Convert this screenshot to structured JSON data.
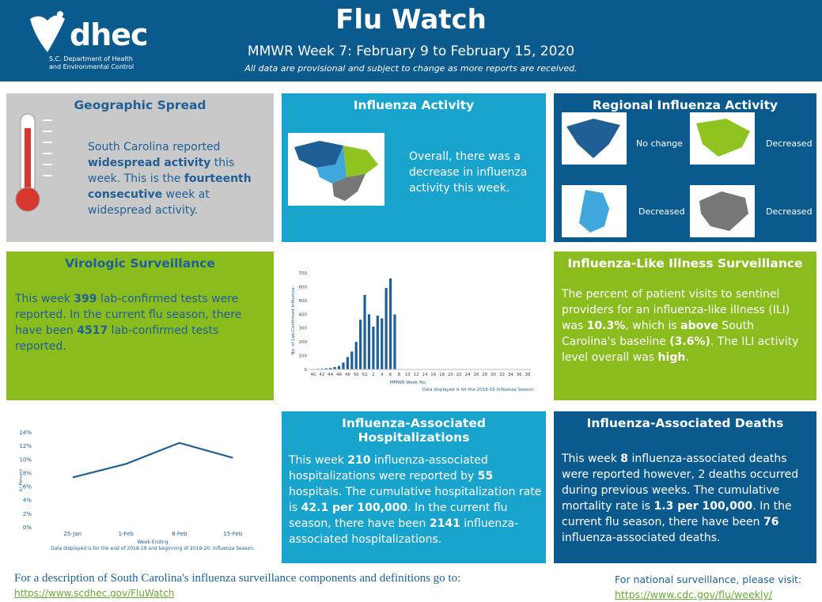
{
  "header": {
    "logo": "dhec",
    "agency": "S.C. Department of Health and Environmental Control",
    "title": "Flu Watch",
    "subtitle": "MMWR Week 7: February 9 to February 15, 2020",
    "note": "All data are provisional and subject to change as more reports are received."
  },
  "panels": {
    "geo": {
      "title": "Geographic Spread",
      "text": [
        "South Carolina reported ",
        "widespread activity",
        " this week. This is the ",
        "fourteenth consecutive",
        " week at widespread activity."
      ]
    },
    "activity": {
      "title": "Influenza Activity",
      "text": [
        "Overall, there was a decrease in influenza activity this week."
      ]
    },
    "regional": {
      "title": "Regional Influenza Activity",
      "regions": [
        "No change",
        "Decreased",
        "Decreased",
        "Decreased"
      ]
    },
    "virologic": {
      "title": "Virologic Surveillance",
      "text": [
        "This week ",
        "399",
        " lab-confirmed tests were reported.  In the current flu season, there have been ",
        "4517",
        " lab-confirmed tests reported."
      ]
    },
    "ili": {
      "title": "Influenza-Like Illness Surveillance",
      "text": [
        "The percent of patient visits to sentinel providers for an influenza-like illness (ILI) was ",
        "10.3%",
        ", which is ",
        "above",
        " South Carolina's baseline ",
        "(3.6%)",
        ". The ILI activity level overall was ",
        "high",
        "."
      ]
    },
    "hosp": {
      "title": "Influenza-Associated Hospitalizations",
      "text": [
        "This week ",
        "210",
        " influenza-associated hospitalizations were reported by ",
        "55",
        " hospitals. The cumulative hospitalization rate is ",
        "42.1 per 100,000",
        ". In the current flu season, there have been ",
        "2141",
        " influenza-associated hospitalizations."
      ]
    },
    "deaths": {
      "title": "Influenza-Associated Deaths",
      "text": [
        "This week ",
        "8",
        " influenza-associated deaths were reported however, 2 deaths occurred during previous weeks. The cumulative mortality rate is ",
        "1.3 per 100,000",
        ". In the current flu season, there have been ",
        "76",
        " influenza-associated deaths."
      ]
    }
  },
  "chart_data": [
    {
      "type": "bar",
      "color": "#1f5f96",
      "x_label": "MMWR Week No.",
      "y_label": "No. of Lab-Confirmed Influenza",
      "note": "Data displayed is for the 2018-19 Influenza Season.",
      "categories": [
        "40",
        null,
        "42",
        null,
        "44",
        null,
        "46",
        null,
        "48",
        null,
        "50",
        null,
        "52",
        null,
        "2",
        null,
        "4",
        null,
        "6",
        null,
        "8",
        null,
        "10",
        null,
        "12",
        null,
        "14",
        null,
        "16",
        null,
        "18",
        null,
        "20",
        null,
        "22",
        null,
        "24",
        null,
        "26",
        null,
        "28",
        null,
        "30",
        null,
        "32",
        null,
        "34",
        null,
        "36",
        null,
        "38"
      ],
      "values": [
        3,
        4,
        5,
        8,
        10,
        18,
        25,
        50,
        90,
        130,
        200,
        360,
        540,
        400,
        310,
        390,
        370,
        590,
        660,
        399,
        null,
        null,
        null,
        null,
        null,
        null,
        null,
        null,
        null,
        null,
        null,
        null,
        null,
        null,
        null,
        null,
        null,
        null,
        null,
        null,
        null,
        null,
        null,
        null,
        null,
        null,
        null,
        null,
        null,
        null,
        null
      ],
      "ylim": [
        0,
        700
      ],
      "yticks": [
        0,
        100,
        200,
        300,
        400,
        500,
        600,
        700
      ]
    },
    {
      "type": "line",
      "color": "#1f5f96",
      "x_label": "Week Ending",
      "y_label": "ILI Percent",
      "note": "Data displayed is for the end of 2018-19 and beginning of 2019-20, Influenza Season.",
      "categories": [
        "25-Jan",
        "1-Feb",
        "8-Feb",
        "15-Feb"
      ],
      "values": [
        7.4,
        9.4,
        12.5,
        10.3
      ],
      "ylim": [
        0,
        14
      ],
      "yticks": [
        {
          "value": 0,
          "label": "0%"
        },
        {
          "value": 2,
          "label": "2%"
        },
        {
          "value": 4,
          "label": "4%"
        },
        {
          "value": 6,
          "label": "6%"
        },
        {
          "value": 8,
          "label": "8%"
        },
        {
          "value": 10,
          "label": "10%"
        },
        {
          "value": 12,
          "label": "12%"
        },
        {
          "value": 14,
          "label": "14%"
        }
      ]
    }
  ],
  "footer": {
    "left_text": "For a description of South Carolina's influenza surveillance components and definitions go to: ",
    "left_link": "https://www.scdhec.gov/FluWatch",
    "right_text": "For national surveillance, please visit:",
    "right_link": "https://www.cdc.gov/flu/weekly/"
  }
}
